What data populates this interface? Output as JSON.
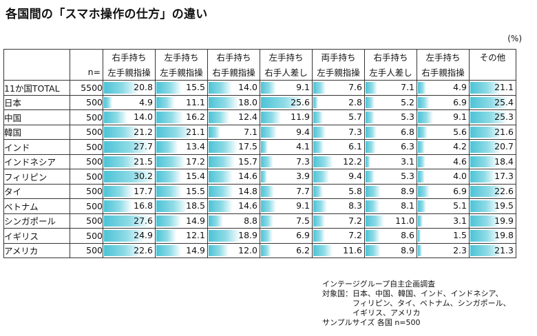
{
  "title": "各国間の「スマホ操作の仕方」の違い",
  "unit": "(%)",
  "colors": {
    "bar_start": "#4cc3d6",
    "bar_end": "#ffffff",
    "border": "#333333"
  },
  "chart_data": {
    "type": "table",
    "title": "各国間の「スマホ操作の仕方」の違い",
    "n_header": "n=",
    "columns": [
      {
        "line1": "右手持ち",
        "line2": "左手親指操"
      },
      {
        "line1": "左手持ち",
        "line2": "左手親指操"
      },
      {
        "line1": "右手持ち",
        "line2": "右手親指操"
      },
      {
        "line1": "左手持ち",
        "line2": "右手人差し"
      },
      {
        "line1": "両手持ち",
        "line2": "左手親指操"
      },
      {
        "line1": "右手持ち",
        "line2": "左手人差し"
      },
      {
        "line1": "左手持ち",
        "line2": "右手親指操"
      },
      {
        "line1": "その他",
        "line2": ""
      }
    ],
    "rows": [
      {
        "name": "11か国TOTAL",
        "n": "5500",
        "values": [
          20.8,
          15.5,
          14.0,
          9.1,
          7.6,
          7.1,
          4.9,
          21.1
        ]
      },
      {
        "name": "日本",
        "n": "500",
        "values": [
          4.9,
          11.1,
          18.0,
          25.6,
          2.8,
          5.2,
          6.9,
          25.4
        ]
      },
      {
        "name": "中国",
        "n": "500",
        "values": [
          14.0,
          16.2,
          12.4,
          11.9,
          5.7,
          5.3,
          9.1,
          25.3
        ]
      },
      {
        "name": "韓国",
        "n": "500",
        "values": [
          21.2,
          21.1,
          7.1,
          9.4,
          7.3,
          6.8,
          5.6,
          21.6
        ]
      },
      {
        "name": "インド",
        "n": "500",
        "values": [
          27.7,
          13.4,
          17.5,
          4.1,
          6.1,
          6.3,
          4.2,
          20.7
        ]
      },
      {
        "name": "インドネシア",
        "n": "500",
        "values": [
          21.5,
          17.2,
          15.7,
          7.3,
          12.2,
          3.1,
          4.6,
          18.4
        ]
      },
      {
        "name": "フィリピン",
        "n": "500",
        "values": [
          30.2,
          15.4,
          14.6,
          3.9,
          9.4,
          5.3,
          4.0,
          17.3
        ]
      },
      {
        "name": "タイ",
        "n": "500",
        "values": [
          17.7,
          15.5,
          14.8,
          7.7,
          5.8,
          8.9,
          6.9,
          22.6
        ]
      },
      {
        "name": "ベトナム",
        "n": "500",
        "values": [
          16.8,
          18.5,
          14.6,
          9.1,
          8.3,
          8.1,
          5.1,
          19.5
        ]
      },
      {
        "name": "シンガポール",
        "n": "500",
        "values": [
          27.6,
          14.9,
          8.8,
          7.5,
          7.2,
          11.0,
          3.1,
          19.9
        ]
      },
      {
        "name": "イギリス",
        "n": "500",
        "values": [
          24.9,
          12.1,
          18.9,
          6.9,
          7.2,
          8.6,
          1.5,
          19.8
        ]
      },
      {
        "name": "アメリカ",
        "n": "500",
        "values": [
          22.6,
          14.9,
          12.0,
          6.2,
          11.6,
          8.9,
          2.3,
          21.3
        ]
      }
    ],
    "bar_scale_max": 30.2
  },
  "footer": {
    "lines": [
      "インテージグループ自主企画調査",
      "対象国：日本、中国、韓国、インド、インドネシア、",
      "　　　　フィリピン、タイ、ベトナム、シンガポール、",
      "　　　　イギリス、アメリカ",
      "サンプルサイズ 各国 n=500"
    ]
  }
}
